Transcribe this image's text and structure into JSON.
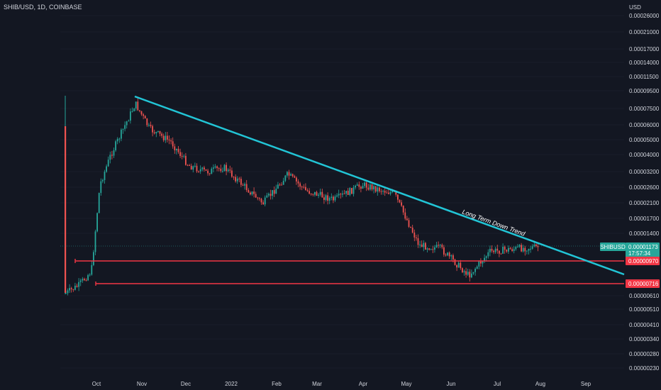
{
  "header": {
    "title": "SHIB/USD, 1D, COINBASE"
  },
  "colors": {
    "background": "#131722",
    "up": "#26a69a",
    "down": "#ef5350",
    "trendline": "#22c5d6",
    "support": "#f23645",
    "text": "#d1d4dc",
    "grid": "#1f2433"
  },
  "chart_data": {
    "type": "candlestick",
    "title": "SHIB/USD, 1D, COINBASE",
    "currency": "USD",
    "x_tick_labels": [
      "Oct",
      "Nov",
      "Dec",
      "2022",
      "Feb",
      "Mar",
      "Apr",
      "May",
      "Jun",
      "Jul",
      "Aug",
      "Sep"
    ],
    "y_tick_labels": [
      "0.00026000",
      "0.00021000",
      "0.00017000",
      "0.00014000",
      "0.00011500",
      "0.00009500",
      "0.00007500",
      "0.00006000",
      "0.00005000",
      "0.00004000",
      "0.00003200",
      "0.00002600",
      "0.00002100",
      "0.00001700",
      "0.00001400",
      "0.00000610",
      "0.00000510",
      "0.00000410",
      "0.00000340",
      "0.00000280",
      "0.00000230"
    ],
    "scale": "log",
    "last_price": {
      "symbol": "SHIBUSD",
      "value": "0.00001173",
      "countdown": "17:57:34"
    },
    "levels": [
      {
        "label": "0.00000970",
        "value": 9.7e-06
      },
      {
        "label": "0.00000716",
        "value": 7.16e-06
      }
    ],
    "trendline": {
      "label": "Long Term Down Trend",
      "points": [
        {
          "x": "Oct 28 2021",
          "y": 8.8e-05
        },
        {
          "x": "Aug 2022",
          "y": 9.6e-06
        }
      ]
    },
    "price_path": [
      {
        "x": "Aug 2021",
        "y": 6.3e-06
      },
      {
        "x": "Sep 2021",
        "y": 7e-06
      },
      {
        "x": "Oct 2021",
        "y": 8.5e-06
      },
      {
        "x": "Oct 2021",
        "y": 2.7e-05
      },
      {
        "x": "Oct 2021",
        "y": 4e-05
      },
      {
        "x": "Oct 28 2021",
        "y": 8e-05
      },
      {
        "x": "Nov 2021",
        "y": 5.7e-05
      },
      {
        "x": "Nov 2021",
        "y": 4.8e-05
      },
      {
        "x": "Dec 2021",
        "y": 3.5e-05
      },
      {
        "x": "Dec 2021",
        "y": 3.2e-05
      },
      {
        "x": "2022",
        "y": 3.4e-05
      },
      {
        "x": "Jan 2022",
        "y": 2.1e-05
      },
      {
        "x": "Feb 2022",
        "y": 3.1e-05
      },
      {
        "x": "Feb 2022",
        "y": 2.5e-05
      },
      {
        "x": "Mar 2022",
        "y": 2.2e-05
      },
      {
        "x": "Apr 2022",
        "y": 2.7e-05
      },
      {
        "x": "Apr 2022",
        "y": 2.4e-05
      },
      {
        "x": "May 2022",
        "y": 1.2e-05
      },
      {
        "x": "Jun 2022",
        "y": 1.15e-05
      },
      {
        "x": "Jun 2022",
        "y": 8e-06
      },
      {
        "x": "Jul 2022",
        "y": 1.1e-05
      },
      {
        "x": "Jul 2022",
        "y": 1.15e-05
      },
      {
        "x": "Aug 2022",
        "y": 1.173e-05
      }
    ]
  }
}
